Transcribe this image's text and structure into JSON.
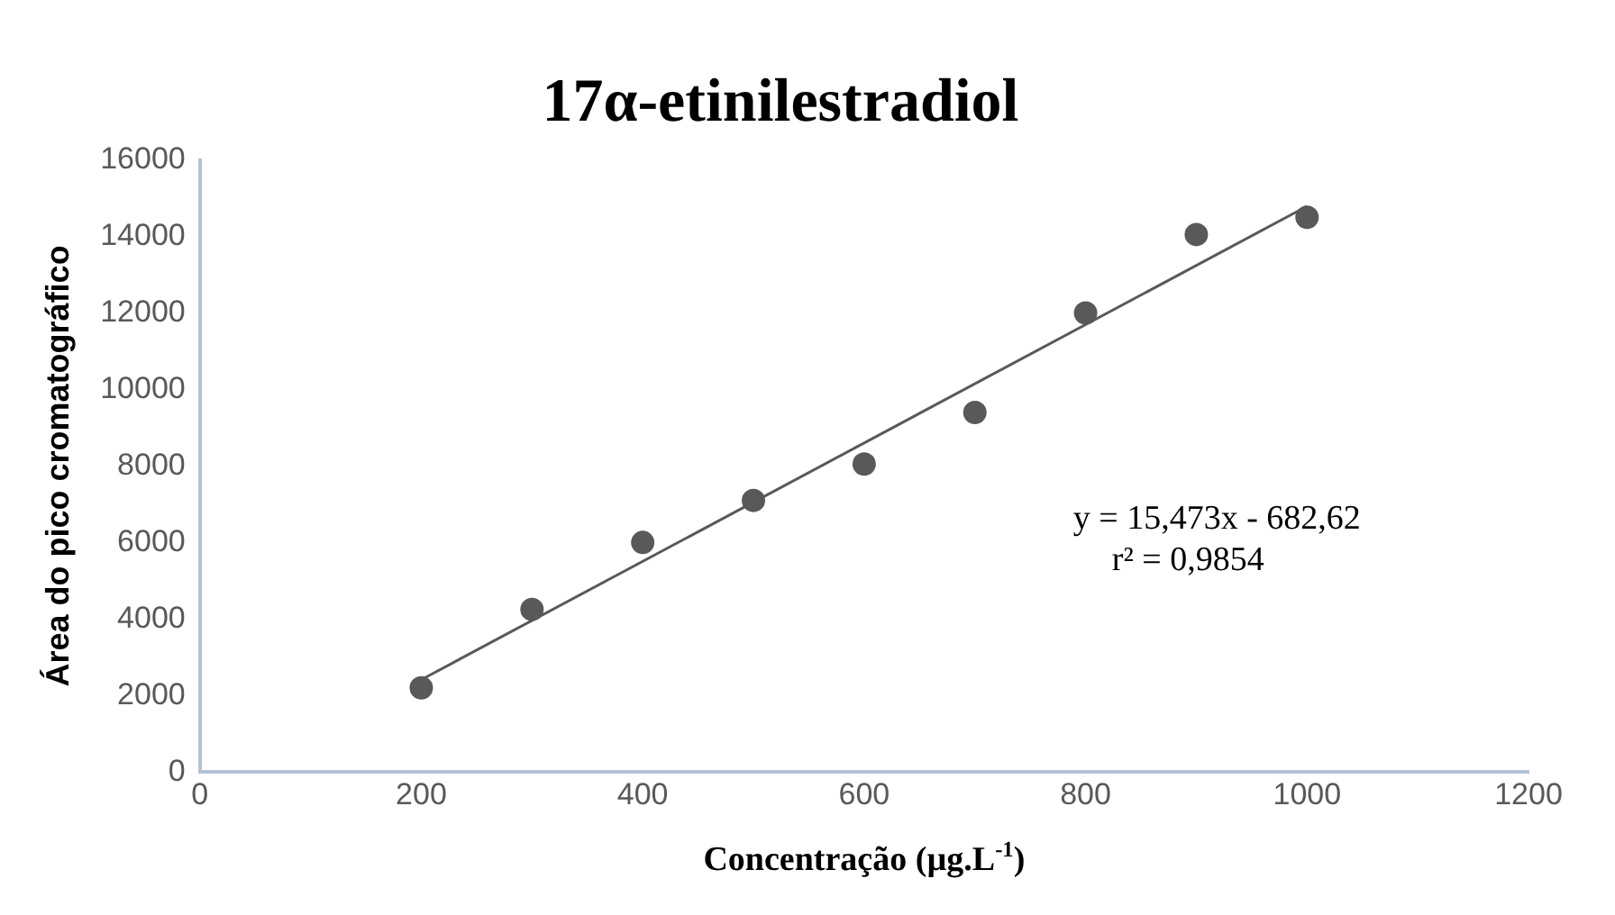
{
  "chart_data": {
    "type": "scatter",
    "title": "17α-etinilestradiol",
    "xlabel": "Concentração (µg.L$^{-1}$)",
    "ylabel": "Área do pico cromatográfico",
    "x": [
      200,
      300,
      400,
      500,
      600,
      700,
      800,
      900,
      1000
    ],
    "series": [
      {
        "color": "#595959",
        "values": [
          2200,
          4250,
          6000,
          7100,
          8050,
          9400,
          12000,
          14050,
          14500
        ]
      },
      {
        "type": "line",
        "color": "#595959",
        "x": [
          200,
          1000
        ],
        "values": [
          2412,
          14790
        ],
        "marker": "none"
      }
    ],
    "xlim": [
      0,
      1200
    ],
    "xticks": [
      0,
      200,
      400,
      600,
      800,
      1000,
      1200
    ],
    "ylim": [
      0,
      16000
    ],
    "yticks": [
      0,
      2000,
      4000,
      6000,
      8000,
      10000,
      12000,
      14000,
      16000
    ],
    "grid": false,
    "legend": false,
    "marker": "circle",
    "annotations": [
      "y = 15,473x - 682,62",
      "r² = 0,9854"
    ]
  }
}
